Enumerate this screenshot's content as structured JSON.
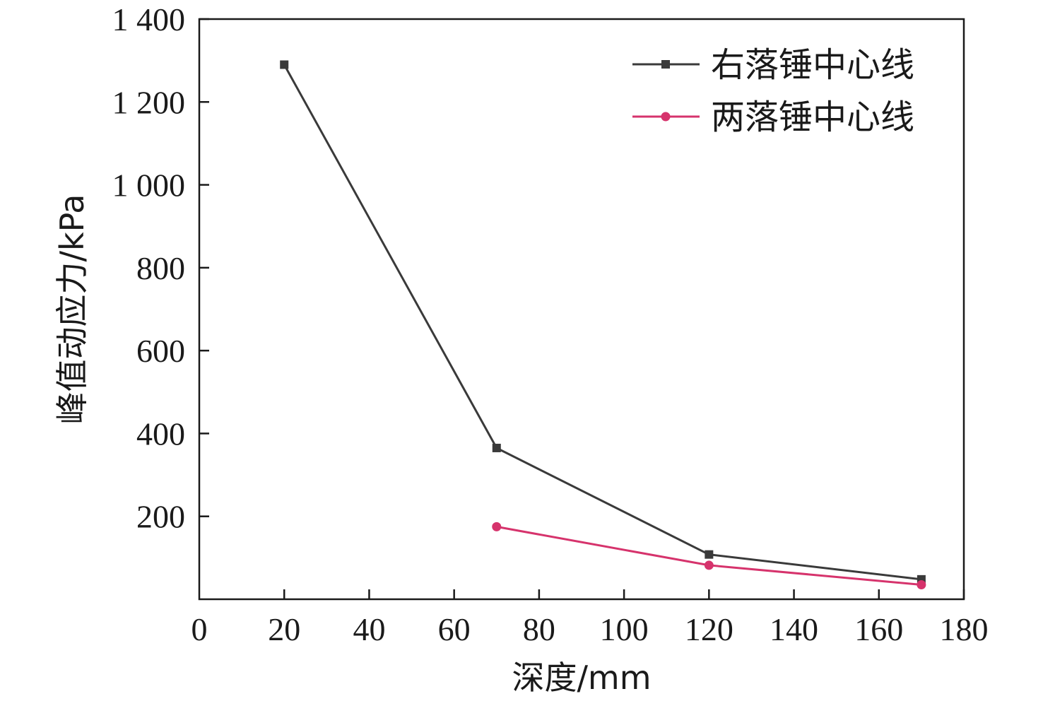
{
  "chart_data": {
    "type": "line",
    "title": "",
    "xlabel": "深度/mm",
    "ylabel": "峰值动应力/kPa",
    "xlim": [
      0,
      180
    ],
    "ylim": [
      0,
      1400
    ],
    "x_ticks": [
      "0",
      "20",
      "40",
      "60",
      "80",
      "100",
      "120",
      "140",
      "160",
      "180"
    ],
    "x_tick_values": [
      0,
      20,
      40,
      60,
      80,
      100,
      120,
      140,
      160,
      180
    ],
    "y_ticks": [
      "200",
      "400",
      "600",
      "800",
      "1 000",
      "1 200",
      "1 400"
    ],
    "y_tick_values": [
      200,
      400,
      600,
      800,
      1000,
      1200,
      1400
    ],
    "grid": false,
    "legend_position": "top-right",
    "series": [
      {
        "name": "右落锤中心线",
        "color": "#3a3a3a",
        "marker": "square",
        "x": [
          20,
          70,
          120,
          170
        ],
        "y": [
          1290,
          365,
          108,
          48
        ]
      },
      {
        "name": "两落锤中心线",
        "color": "#d6336c",
        "marker": "circle",
        "x": [
          70,
          120,
          170
        ],
        "y": [
          175,
          82,
          35
        ]
      }
    ]
  }
}
